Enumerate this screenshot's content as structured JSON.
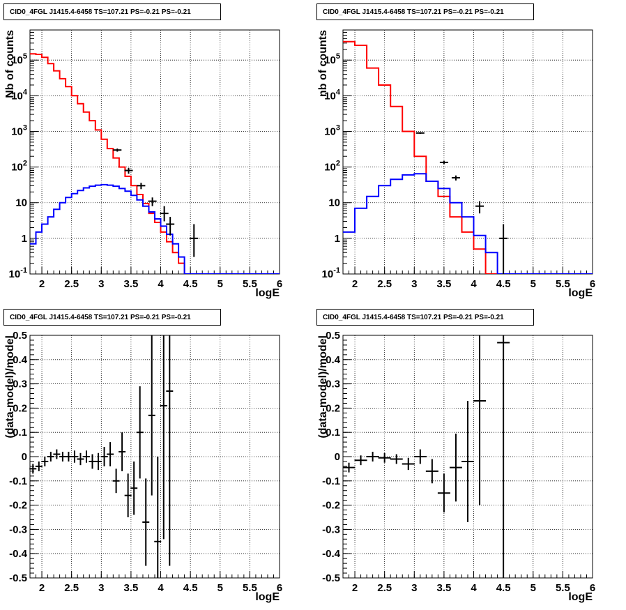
{
  "panels": [
    {
      "title": "CID0_4FGL J1415.4-6458 TS=107.21 PS=-0.21 PS=-0.21",
      "chart_data": {
        "type": "line",
        "xlabel": "logE",
        "ylabel": "Nb of counts",
        "ylog": true,
        "xlim": [
          1.8,
          6.0
        ],
        "ylim": [
          0.1,
          700000
        ],
        "grid": true,
        "x_ticks": [
          "2",
          "2.5",
          "3",
          "3.5",
          "4",
          "4.5",
          "5",
          "5.5",
          "6"
        ],
        "y_ticks": [
          "10^-1",
          "1",
          "10",
          "10^2",
          "10^3",
          "10^4",
          "10^5"
        ],
        "bin_edges": [
          1.8,
          1.9,
          2.0,
          2.1,
          2.2,
          2.3,
          2.4,
          2.5,
          2.6,
          2.7,
          2.8,
          2.9,
          3.0,
          3.1,
          3.2,
          3.3,
          3.4,
          3.5,
          3.6,
          3.7,
          3.8,
          3.9,
          4.0,
          4.1,
          4.2,
          4.3,
          4.4,
          4.5,
          4.6,
          4.7,
          4.8,
          4.9,
          5.0,
          5.1,
          5.2,
          5.3,
          5.4,
          5.5,
          5.6,
          5.7,
          5.8,
          5.9,
          6.0
        ],
        "series": [
          {
            "color": "#ff0000",
            "values": [
              150000,
              145000,
              120000,
              80000,
              50000,
              30000,
              18000,
              10000,
              6000,
              3500,
              2000,
              1100,
              600,
              330,
              180,
              100,
              55,
              30,
              17,
              9.5,
              5,
              2.8,
              1.5,
              0.8,
              0.4,
              0.2,
              0.1,
              0.1,
              0.1,
              0.1,
              0.1,
              0.1,
              0.1,
              0.1,
              0.1,
              0.1,
              0.1,
              0.1,
              0.1,
              0.1,
              0.1,
              0.1
            ]
          },
          {
            "color": "#0000ff",
            "values": [
              0.7,
              1.5,
              2.5,
              4,
              6.5,
              10,
              14,
              18,
              22,
              26,
              29,
              31,
              32,
              31,
              29,
              25,
              21,
              16,
              12,
              8,
              5.5,
              3.5,
              2.2,
              1.3,
              0.7,
              0.3,
              0.1,
              0.1,
              0.1,
              0.1,
              0.1,
              0.1,
              0.1,
              0.1,
              0.1,
              0.1,
              0.1,
              0.1,
              0.1,
              0.1,
              0.1,
              0.1
            ]
          }
        ],
        "data_points": [
          {
            "x": 3.27,
            "y": 300,
            "ylo": 270,
            "yhi": 330
          },
          {
            "x": 3.46,
            "y": 80,
            "ylo": 65,
            "yhi": 95
          },
          {
            "x": 3.67,
            "y": 30,
            "ylo": 24,
            "yhi": 36
          },
          {
            "x": 3.86,
            "y": 11,
            "ylo": 8,
            "yhi": 14
          },
          {
            "x": 4.06,
            "y": 5,
            "ylo": 3,
            "yhi": 8
          },
          {
            "x": 4.16,
            "y": 2.5,
            "ylo": 1.2,
            "yhi": 4
          },
          {
            "x": 4.56,
            "y": 1,
            "ylo": 0.3,
            "yhi": 2.5
          }
        ]
      }
    },
    {
      "title": "CID0_4FGL J1415.4-6458 TS=107.21 PS=-0.21 PS=-0.21",
      "chart_data": {
        "type": "line",
        "xlabel": "logE",
        "ylabel": "nb of counts",
        "ylog": true,
        "xlim": [
          1.8,
          6.0
        ],
        "ylim": [
          0.1,
          700000
        ],
        "grid": true,
        "x_ticks": [
          "2",
          "2.5",
          "3",
          "3.5",
          "4",
          "4.5",
          "5",
          "5.5",
          "6"
        ],
        "y_ticks": [
          "10^-1",
          "1",
          "10",
          "10^2",
          "10^3",
          "10^4",
          "10^5"
        ],
        "bin_edges": [
          1.8,
          2.0,
          2.2,
          2.4,
          2.6,
          2.8,
          3.0,
          3.2,
          3.4,
          3.6,
          3.8,
          4.0,
          4.2,
          4.4,
          4.6,
          4.8,
          5.0,
          5.2,
          5.4,
          5.6,
          5.8,
          6.0
        ],
        "series": [
          {
            "color": "#ff0000",
            "values": [
              330000,
              260000,
              60000,
              20000,
              5000,
              1000,
              200,
              40,
              15,
              4,
              1.5,
              0.5,
              0.1,
              0.1,
              0.1,
              0.1,
              0.1,
              0.1,
              0.1,
              0.1,
              0.1
            ]
          },
          {
            "color": "#0000ff",
            "values": [
              1.5,
              7,
              15,
              30,
              45,
              60,
              65,
              40,
              25,
              10,
              4,
              1.2,
              0.4,
              0.1,
              0.1,
              0.1,
              0.1,
              0.1,
              0.1,
              0.1,
              0.1
            ]
          }
        ],
        "data_points": [
          {
            "x": 3.1,
            "y": 900,
            "ylo": 850,
            "yhi": 950
          },
          {
            "x": 3.5,
            "y": 135,
            "ylo": 120,
            "yhi": 150
          },
          {
            "x": 3.7,
            "y": 50,
            "ylo": 42,
            "yhi": 58
          },
          {
            "x": 4.1,
            "y": 8,
            "ylo": 5,
            "yhi": 11
          },
          {
            "x": 4.5,
            "y": 1,
            "ylo": 0.1,
            "yhi": 2.5
          }
        ]
      }
    },
    {
      "title": "CID0_4FGL J1415.4-6458 TS=107.21 PS=-0.21 PS=-0.21",
      "chart_data": {
        "type": "scatter",
        "xlabel": "logE",
        "ylabel": "(data-model)/model",
        "ylog": false,
        "xlim": [
          1.8,
          6.0
        ],
        "ylim": [
          -0.5,
          0.5
        ],
        "grid": true,
        "x_ticks": [
          "2",
          "2.5",
          "3",
          "3.5",
          "4",
          "4.5",
          "5",
          "5.5",
          "6"
        ],
        "y_ticks": [
          "-0.5",
          "-0.4",
          "-0.3",
          "-0.2",
          "-0.1",
          "0",
          "0.1",
          "0.2",
          "0.3",
          "0.4",
          "0.5"
        ],
        "points": [
          {
            "x": 1.85,
            "y": -0.05,
            "err": 0.02
          },
          {
            "x": 1.95,
            "y": -0.04,
            "err": 0.02
          },
          {
            "x": 2.05,
            "y": -0.02,
            "err": 0.02
          },
          {
            "x": 2.15,
            "y": 0.0,
            "err": 0.02
          },
          {
            "x": 2.25,
            "y": 0.01,
            "err": 0.02
          },
          {
            "x": 2.35,
            "y": 0.0,
            "err": 0.02
          },
          {
            "x": 2.45,
            "y": 0.0,
            "err": 0.02
          },
          {
            "x": 2.55,
            "y": 0.0,
            "err": 0.025
          },
          {
            "x": 2.65,
            "y": -0.01,
            "err": 0.025
          },
          {
            "x": 2.75,
            "y": 0.0,
            "err": 0.025
          },
          {
            "x": 2.85,
            "y": -0.02,
            "err": 0.03
          },
          {
            "x": 2.95,
            "y": -0.02,
            "err": 0.035
          },
          {
            "x": 3.05,
            "y": 0.0,
            "err": 0.04
          },
          {
            "x": 3.15,
            "y": 0.01,
            "err": 0.05
          },
          {
            "x": 3.25,
            "y": -0.1,
            "err": 0.05
          },
          {
            "x": 3.35,
            "y": 0.02,
            "err": 0.08
          },
          {
            "x": 3.45,
            "y": -0.16,
            "err": 0.09
          },
          {
            "x": 3.55,
            "y": -0.13,
            "err": 0.11
          },
          {
            "x": 3.65,
            "y": 0.1,
            "err": 0.19
          },
          {
            "x": 3.75,
            "y": -0.27,
            "err": 0.18
          },
          {
            "x": 3.85,
            "y": 0.17,
            "err": 0.33
          },
          {
            "x": 3.95,
            "y": -0.35,
            "err": 0.35
          },
          {
            "x": 4.05,
            "y": 0.21,
            "err": 0.55
          },
          {
            "x": 4.15,
            "y": 0.27,
            "err": 0.72
          }
        ]
      }
    },
    {
      "title": "CID0_4FGL J1415.4-6458 TS=107.21 PS=-0.21 PS=-0.21",
      "chart_data": {
        "type": "scatter",
        "xlabel": "logE",
        "ylabel": "(data-model)/model",
        "ylog": false,
        "xlim": [
          1.8,
          6.0
        ],
        "ylim": [
          -0.5,
          0.5
        ],
        "grid": true,
        "x_ticks": [
          "2",
          "2.5",
          "3",
          "3.5",
          "4",
          "4.5",
          "5",
          "5.5",
          "6"
        ],
        "y_ticks": [
          "-0.5",
          "-0.4",
          "-0.3",
          "-0.2",
          "-0.1",
          "0",
          "0.1",
          "0.2",
          "0.3",
          "0.4",
          "0.5"
        ],
        "points": [
          {
            "x": 1.9,
            "y": -0.045,
            "err": 0.02
          },
          {
            "x": 2.1,
            "y": -0.015,
            "err": 0.02
          },
          {
            "x": 2.3,
            "y": 0.0,
            "err": 0.02
          },
          {
            "x": 2.5,
            "y": -0.005,
            "err": 0.02
          },
          {
            "x": 2.7,
            "y": -0.01,
            "err": 0.02
          },
          {
            "x": 2.9,
            "y": -0.03,
            "err": 0.025
          },
          {
            "x": 3.1,
            "y": 0.0,
            "err": 0.03
          },
          {
            "x": 3.3,
            "y": -0.06,
            "err": 0.05
          },
          {
            "x": 3.5,
            "y": -0.15,
            "err": 0.08
          },
          {
            "x": 3.7,
            "y": -0.045,
            "err": 0.14
          },
          {
            "x": 3.9,
            "y": -0.02,
            "err": 0.25
          },
          {
            "x": 4.1,
            "y": 0.23,
            "err": 0.43
          },
          {
            "x": 4.5,
            "y": 0.47,
            "err": 1.0
          }
        ]
      }
    }
  ]
}
